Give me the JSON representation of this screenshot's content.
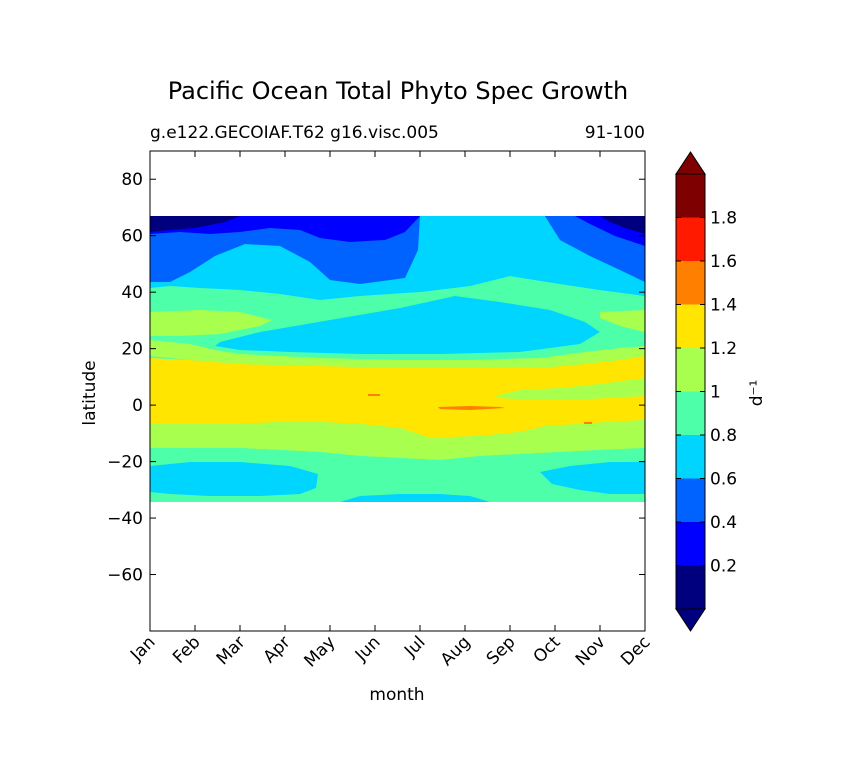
{
  "chart_data": {
    "type": "contourf",
    "title": "Pacific Ocean Total Phyto Spec Growth",
    "subtitle_left": "g.e122.GECOIAF.T62 g16.visc.005",
    "subtitle_right": "91-100",
    "xlabel": "month",
    "ylabel": "latitude",
    "x_categories": [
      "Jan",
      "Feb",
      "Mar",
      "Apr",
      "May",
      "Jun",
      "Jul",
      "Aug",
      "Sep",
      "Oct",
      "Nov",
      "Dec"
    ],
    "ylim": [
      -80,
      90
    ],
    "y_ticks": [
      80,
      60,
      40,
      20,
      0,
      -20,
      -40,
      -60
    ],
    "y_tick_labels": [
      "80",
      "60",
      "40",
      "20",
      "0",
      "−20",
      "−40",
      "−60"
    ],
    "data_lat_range": [
      -34,
      67
    ],
    "colorbar": {
      "label": "d⁻¹",
      "extend": "both",
      "tick_labels": [
        "0.2",
        "0.4",
        "0.6",
        "0.8",
        "1",
        "1.2",
        "1.4",
        "1.6",
        "1.8"
      ],
      "levels": [
        {
          "range": [
            0.0,
            0.2
          ],
          "color": "#00007f"
        },
        {
          "range": [
            0.2,
            0.4
          ],
          "color": "#0000ff"
        },
        {
          "range": [
            0.4,
            0.6
          ],
          "color": "#0063ff"
        },
        {
          "range": [
            0.6,
            0.8
          ],
          "color": "#00d5ff"
        },
        {
          "range": [
            0.8,
            1.0
          ],
          "color": "#4effa9"
        },
        {
          "range": [
            1.0,
            1.2
          ],
          "color": "#a9ff4e"
        },
        {
          "range": [
            1.2,
            1.4
          ],
          "color": "#ffe500"
        },
        {
          "range": [
            1.4,
            1.6
          ],
          "color": "#ff7f00"
        },
        {
          "range": [
            1.6,
            1.8
          ],
          "color": "#ff1a00"
        },
        {
          "range": [
            1.8,
            2.0
          ],
          "color": "#7f0000"
        }
      ],
      "under_color": "#00007f",
      "over_color": "#7f0000"
    },
    "regions": [
      {
        "band": "polar north (63-67)",
        "approx_value": 0.3
      },
      {
        "band": "subpolar north (45-63)",
        "approx_value": 0.5
      },
      {
        "band": "north mid (35-45)",
        "approx_value": 0.7
      },
      {
        "band": "north subtropics (20-35)",
        "approx_value": 0.9
      },
      {
        "band": "tropics (-6-17)",
        "approx_value": 1.3
      },
      {
        "band": "south subtropics (-20 to -6)",
        "approx_value": 1.1
      },
      {
        "band": "south mid (-34 to -20)",
        "approx_value": 0.8
      }
    ]
  }
}
